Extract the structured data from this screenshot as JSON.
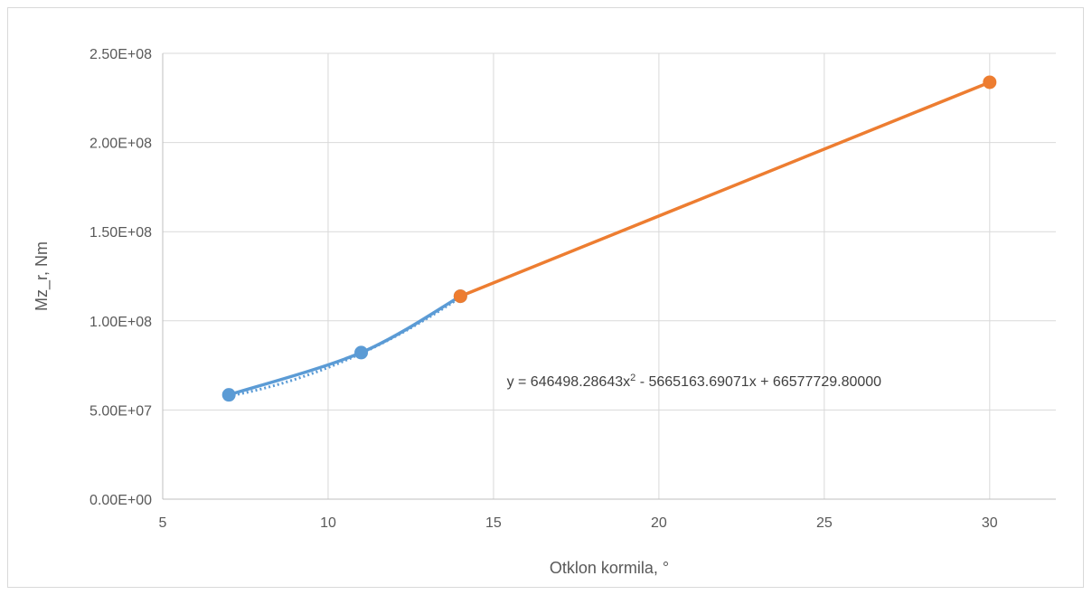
{
  "chart_data": {
    "type": "line",
    "title": "",
    "xlabel": "Otklon kormila, °",
    "ylabel": "Mz_r, Nm",
    "xlim": [
      5,
      32
    ],
    "ylim": [
      0,
      250000000
    ],
    "x_ticks": [
      5,
      10,
      15,
      20,
      25,
      30
    ],
    "x_tick_labels": [
      "5",
      "10",
      "15",
      "20",
      "25",
      "30"
    ],
    "y_ticks": [
      0,
      50000000,
      100000000,
      150000000,
      200000000,
      250000000
    ],
    "y_tick_labels": [
      "0.00E+00",
      "5.00E+07",
      "1.00E+08",
      "1.50E+08",
      "2.00E+08",
      "2.50E+08"
    ],
    "grid": true,
    "legend": "none",
    "series": [
      {
        "color": "#5b9bd5",
        "smooth": true,
        "x": [
          7,
          11,
          14
        ],
        "y": [
          58500000,
          82200000,
          113800000
        ]
      },
      {
        "color": "#ed7d31",
        "smooth": false,
        "x": [
          14,
          30
        ],
        "y": [
          113800000,
          233800000
        ]
      }
    ],
    "trendline": {
      "color": "#5b9bd5",
      "style": "dotted",
      "type": "polynomial",
      "x_range": [
        7,
        14
      ],
      "coefficients": [
        646498.28643,
        -5665163.69071,
        66577729.8
      ]
    },
    "annotation": {
      "prefix": "y = 646498.28643x",
      "exponent": "2",
      "suffix": " - 5665163.69071x + 66577729.80000",
      "x": 15.4,
      "y": 63500000
    }
  }
}
